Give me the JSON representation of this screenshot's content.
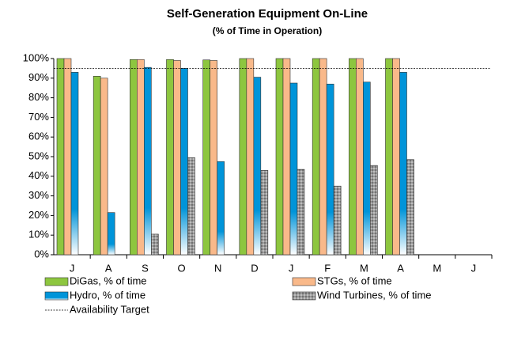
{
  "chart_data": {
    "type": "bar",
    "title": "Self-Generation Equipment On-Line",
    "subtitle": "(% of Time in Operation)",
    "categories": [
      "J",
      "A",
      "S",
      "O",
      "N",
      "D",
      "J",
      "F",
      "M",
      "A",
      "M",
      "J"
    ],
    "series": [
      {
        "name": "DiGas, % of time",
        "color": "#8dc63f",
        "values": [
          100,
          91,
          99.5,
          99.5,
          99.3,
          100,
          100,
          100,
          100,
          100,
          null,
          null
        ]
      },
      {
        "name": "STGs, % of time",
        "color": "#f9b98a",
        "values": [
          100,
          90,
          99.5,
          99,
          99,
          100,
          100,
          100,
          100,
          100,
          null,
          null
        ]
      },
      {
        "name": "Hydro, % of time",
        "color": "#0094d9",
        "values": [
          93,
          21.5,
          95.5,
          95,
          47.5,
          90.5,
          87.5,
          87,
          88,
          93,
          null,
          null
        ]
      },
      {
        "name": "Wind Turbines, % of time",
        "color": "#9a9a9a",
        "values": [
          null,
          null,
          10.5,
          49.5,
          null,
          43,
          43.5,
          35,
          45.5,
          48.5,
          null,
          null
        ]
      }
    ],
    "target": {
      "name": "Availability Target",
      "value": 95
    },
    "ylim": [
      0,
      100
    ],
    "yticks": [
      {
        "value": 0,
        "label": "0%"
      },
      {
        "value": 10,
        "label": "10%"
      },
      {
        "value": 20,
        "label": "20%"
      },
      {
        "value": 30,
        "label": "30%"
      },
      {
        "value": 40,
        "label": "40%"
      },
      {
        "value": 50,
        "label": "50%"
      },
      {
        "value": 60,
        "label": "60%"
      },
      {
        "value": 70,
        "label": "70%"
      },
      {
        "value": 80,
        "label": "80%"
      },
      {
        "value": 90,
        "label": "90%"
      },
      {
        "value": 100,
        "label": "100%"
      }
    ],
    "grid": false
  }
}
